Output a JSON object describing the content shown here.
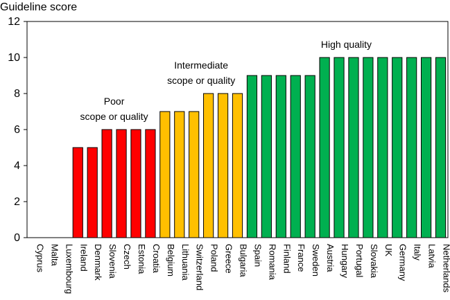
{
  "chart_data": {
    "type": "bar",
    "ylabel": "Guideline score",
    "ylim": [
      0,
      12
    ],
    "yticks": [
      "0",
      "2",
      "4",
      "6",
      "8",
      "10",
      "12"
    ],
    "grid": false,
    "categories": [
      "Cyprus",
      "Malta",
      "Luxembourg",
      "Ireland",
      "Denmark",
      "Slovenia",
      "Czech",
      "Estonia",
      "Croatia",
      "Belgium",
      "Lithuania",
      "Switzerland",
      "Poland",
      "Greece",
      "Bulgaria",
      "Spain",
      "Romania",
      "Finland",
      "France",
      "Sweden",
      "Austria",
      "Hungary",
      "Portugal",
      "Slovakia",
      "UK",
      "Germany",
      "Italy",
      "Latvia",
      "Netherlands"
    ],
    "values": [
      0,
      0,
      0,
      5,
      5,
      6,
      6,
      6,
      6,
      7,
      7,
      7,
      8,
      8,
      8,
      9,
      9,
      9,
      9,
      9,
      10,
      10,
      10,
      10,
      10,
      10,
      10,
      10,
      10
    ],
    "groups": [
      "poor",
      "poor",
      "poor",
      "poor",
      "poor",
      "poor",
      "poor",
      "poor",
      "poor",
      "intermediate",
      "intermediate",
      "intermediate",
      "intermediate",
      "intermediate",
      "intermediate",
      "high",
      "high",
      "high",
      "high",
      "high",
      "high",
      "high",
      "high",
      "high",
      "high",
      "high",
      "high",
      "high",
      "high"
    ],
    "colors": {
      "poor": "#ff0000",
      "intermediate": "#ffc000",
      "high": "#00b050"
    },
    "annotations": [
      {
        "id": "poor",
        "lines": [
          "Poor",
          "scope or quality"
        ]
      },
      {
        "id": "intermediate",
        "lines": [
          "Intermediate",
          "scope or quality"
        ]
      },
      {
        "id": "high",
        "lines": [
          "High quality"
        ]
      }
    ]
  }
}
